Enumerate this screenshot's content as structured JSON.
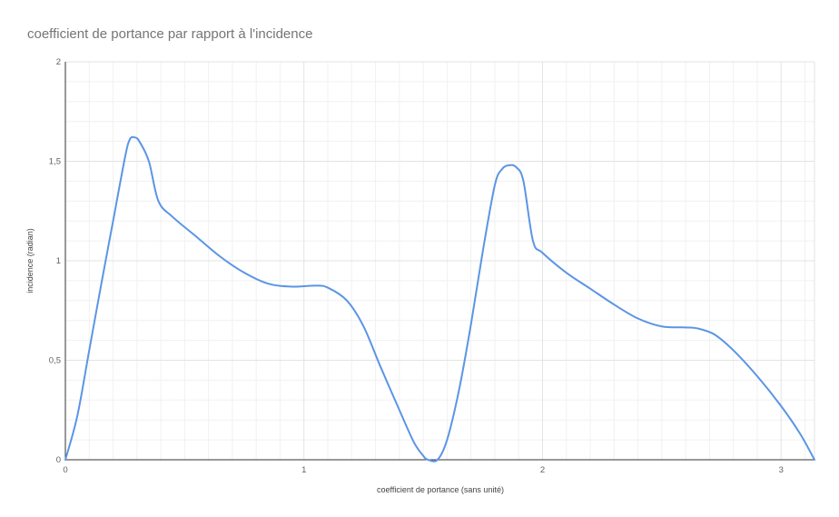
{
  "chart_data": {
    "type": "line",
    "title": "coefficient de portance par rapport à l'incidence",
    "xlabel": "coefficient de portance (sans unité)",
    "ylabel": "incidence (radian)",
    "xlim": [
      0,
      3.14
    ],
    "ylim": [
      0,
      2
    ],
    "x_ticks": [
      0,
      1,
      2,
      3
    ],
    "x_tick_labels": [
      "0",
      "1",
      "2",
      "3"
    ],
    "y_ticks": [
      0,
      0.5,
      1,
      1.5,
      2
    ],
    "y_tick_labels": [
      "0",
      "0,5",
      "1",
      "1,5",
      "2"
    ],
    "grid": true,
    "legend": "none",
    "colors": {
      "line": "#5b95e5",
      "grid_major": "#e3e3e3",
      "grid_minor": "#f1f1f1",
      "axis": "#333333"
    },
    "series": [
      {
        "points": [
          [
            0,
            0
          ],
          [
            0.05,
            0.22
          ],
          [
            0.1,
            0.55
          ],
          [
            0.15,
            0.88
          ],
          [
            0.2,
            1.2
          ],
          [
            0.25,
            1.52
          ],
          [
            0.27,
            1.61
          ],
          [
            0.29,
            1.62
          ],
          [
            0.31,
            1.6
          ],
          [
            0.35,
            1.5
          ],
          [
            0.39,
            1.3
          ],
          [
            0.45,
            1.22
          ],
          [
            0.55,
            1.12
          ],
          [
            0.65,
            1.02
          ],
          [
            0.75,
            0.94
          ],
          [
            0.85,
            0.885
          ],
          [
            0.95,
            0.87
          ],
          [
            1.05,
            0.875
          ],
          [
            1.1,
            0.865
          ],
          [
            1.18,
            0.8
          ],
          [
            1.25,
            0.67
          ],
          [
            1.32,
            0.47
          ],
          [
            1.4,
            0.25
          ],
          [
            1.46,
            0.09
          ],
          [
            1.5,
            0.02
          ],
          [
            1.52,
            0.0
          ],
          [
            1.56,
            0.0
          ],
          [
            1.6,
            0.1
          ],
          [
            1.65,
            0.35
          ],
          [
            1.7,
            0.68
          ],
          [
            1.75,
            1.05
          ],
          [
            1.8,
            1.38
          ],
          [
            1.83,
            1.46
          ],
          [
            1.86,
            1.48
          ],
          [
            1.89,
            1.47
          ],
          [
            1.92,
            1.4
          ],
          [
            1.96,
            1.1
          ],
          [
            2.0,
            1.04
          ],
          [
            2.1,
            0.94
          ],
          [
            2.2,
            0.86
          ],
          [
            2.3,
            0.78
          ],
          [
            2.4,
            0.71
          ],
          [
            2.5,
            0.67
          ],
          [
            2.6,
            0.665
          ],
          [
            2.65,
            0.66
          ],
          [
            2.72,
            0.63
          ],
          [
            2.8,
            0.55
          ],
          [
            2.9,
            0.42
          ],
          [
            3.0,
            0.27
          ],
          [
            3.08,
            0.13
          ],
          [
            3.14,
            0.0
          ]
        ]
      }
    ]
  }
}
